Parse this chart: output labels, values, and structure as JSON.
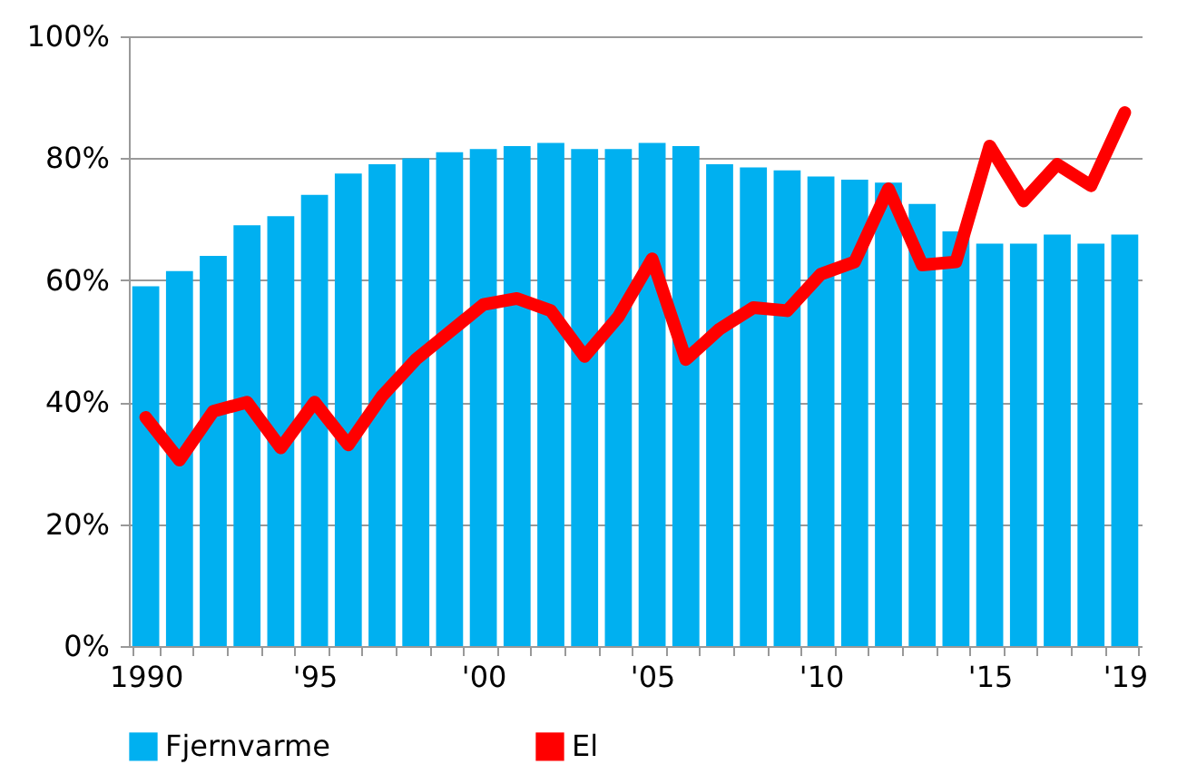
{
  "chart_data": {
    "type": "bar",
    "categories": [
      "1990",
      null,
      null,
      null,
      null,
      "'95",
      null,
      null,
      null,
      null,
      "'00",
      null,
      null,
      null,
      null,
      "'05",
      null,
      null,
      null,
      null,
      "'10",
      null,
      null,
      null,
      null,
      "'15",
      null,
      null,
      null,
      "'19"
    ],
    "series": [
      {
        "name": "Fjernvarme",
        "color": "#00b0f0",
        "values": [
          59,
          61.5,
          64,
          69,
          70.5,
          74,
          77.5,
          79,
          80,
          81,
          81.5,
          82,
          82.5,
          81.5,
          81.5,
          82.5,
          82,
          79,
          78.5,
          78,
          77,
          76.5,
          76,
          72.5,
          68,
          66,
          66,
          67.5,
          66,
          67.5
        ]
      },
      {
        "name": "El",
        "type": "line",
        "color": "#ff0000",
        "values": [
          37.5,
          30.5,
          38.5,
          40,
          32.5,
          40,
          33,
          41,
          47,
          51.5,
          56,
          57,
          55,
          47.5,
          54,
          63.5,
          47,
          52,
          55.5,
          55,
          61,
          63,
          75,
          62.5,
          63,
          82,
          73,
          79,
          75.5,
          87.5
        ]
      }
    ],
    "ylim": [
      0,
      100
    ],
    "yticks": [
      {
        "value": 0,
        "label": "0%"
      },
      {
        "value": 20,
        "label": "20%"
      },
      {
        "value": 40,
        "label": "40%"
      },
      {
        "value": 60,
        "label": "60%"
      },
      {
        "value": 80,
        "label": "80%"
      },
      {
        "value": 100,
        "label": "100%"
      }
    ],
    "grid": "y",
    "legend": "bottom",
    "line_style": "solid"
  }
}
